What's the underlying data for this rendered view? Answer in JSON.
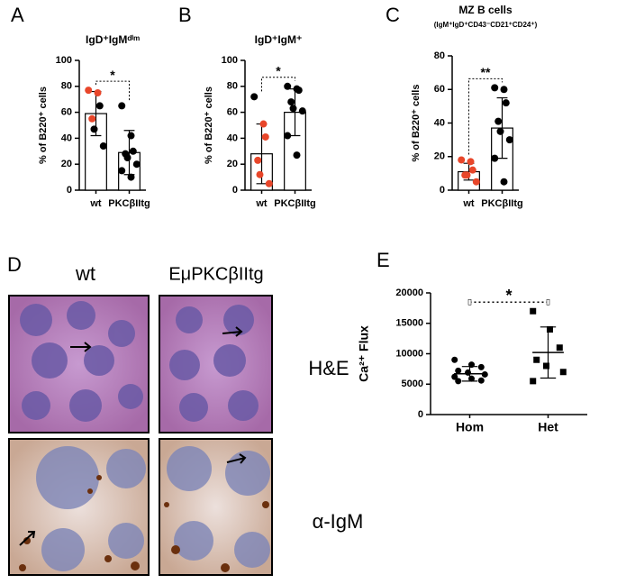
{
  "chart_data": [
    {
      "type": "bar",
      "label": "A",
      "title": "IgD⁺IgMᵈⁱᵐ",
      "y_label": "% of B220⁺ cells",
      "categories": [
        "wt",
        "PKCβIItg"
      ],
      "values": [
        59,
        29
      ],
      "sd": [
        17,
        17
      ],
      "points": [
        [
          77,
          75,
          65,
          55,
          47,
          34
        ],
        [
          65,
          42,
          30,
          28,
          25,
          20,
          15,
          10
        ]
      ],
      "point_colors": [
        [
          "#e8462a",
          "#e8462a",
          "#000000",
          "#e8462a",
          "#000000",
          "#000000"
        ],
        [
          "#000000",
          "#000000",
          "#000000",
          "#000000",
          "#000000",
          "#000000",
          "#000000",
          "#000000"
        ]
      ],
      "ylim": [
        0,
        100
      ],
      "yticks": [
        0,
        20,
        40,
        60,
        80,
        100
      ],
      "significance": "*"
    },
    {
      "type": "bar",
      "label": "B",
      "title": "IgD⁺IgM⁺",
      "y_label": "% of B220⁺ cells",
      "categories": [
        "wt",
        "PKCβIItg"
      ],
      "values": [
        28,
        60
      ],
      "sd": [
        23,
        18
      ],
      "points": [
        [
          72,
          51,
          41,
          23,
          12,
          5
        ],
        [
          80,
          78,
          77,
          68,
          63,
          61,
          42,
          27
        ]
      ],
      "point_colors": [
        [
          "#000000",
          "#e8462a",
          "#e8462a",
          "#e8462a",
          "#e8462a",
          "#e8462a"
        ],
        [
          "#000000",
          "#000000",
          "#000000",
          "#000000",
          "#000000",
          "#000000",
          "#000000",
          "#000000"
        ]
      ],
      "ylim": [
        0,
        100
      ],
      "yticks": [
        0,
        20,
        40,
        60,
        80,
        100
      ],
      "significance": "*"
    },
    {
      "type": "bar",
      "label": "C",
      "title": "MZ B cells",
      "subtitle": "(IgM⁺IgD⁺CD43⁻CD21⁺CD24⁺)",
      "y_label": "% of B220⁺ cells",
      "categories": [
        "wt",
        "PKCβIItg"
      ],
      "values": [
        11,
        37
      ],
      "sd": [
        5,
        18
      ],
      "points": [
        [
          18,
          17,
          12,
          9,
          9,
          5
        ],
        [
          61,
          60,
          52,
          41,
          35,
          30,
          19,
          5
        ]
      ],
      "point_colors": [
        [
          "#e8462a",
          "#e8462a",
          "#e8462a",
          "#e8462a",
          "#e8462a",
          "#e8462a"
        ],
        [
          "#000000",
          "#000000",
          "#000000",
          "#000000",
          "#000000",
          "#000000",
          "#000000",
          "#000000"
        ]
      ],
      "ylim": [
        0,
        80
      ],
      "yticks": [
        0,
        20,
        40,
        60,
        80
      ],
      "significance": "**"
    },
    {
      "type": "dot",
      "label": "E",
      "y_label": "Ca²⁺ Flux",
      "categories": [
        "Hom",
        "Het"
      ],
      "values": [
        6700,
        10200
      ],
      "sd": [
        1200,
        4200
      ],
      "points": [
        [
          9000,
          8200,
          7800,
          7200,
          6900,
          6600,
          6200,
          5900,
          5600,
          5500
        ],
        [
          17000,
          14000,
          11000,
          9000,
          8000,
          7000,
          5500
        ]
      ],
      "markers": [
        "circle",
        "square"
      ],
      "color": "#000000",
      "ylim": [
        0,
        20000
      ],
      "yticks": [
        0,
        5000,
        10000,
        15000,
        20000
      ],
      "significance": "*"
    }
  ],
  "histology": {
    "label": "D",
    "columns": [
      "wt",
      "EμPKCβIItg"
    ],
    "rows": [
      "H&E",
      "α-IgM"
    ]
  }
}
